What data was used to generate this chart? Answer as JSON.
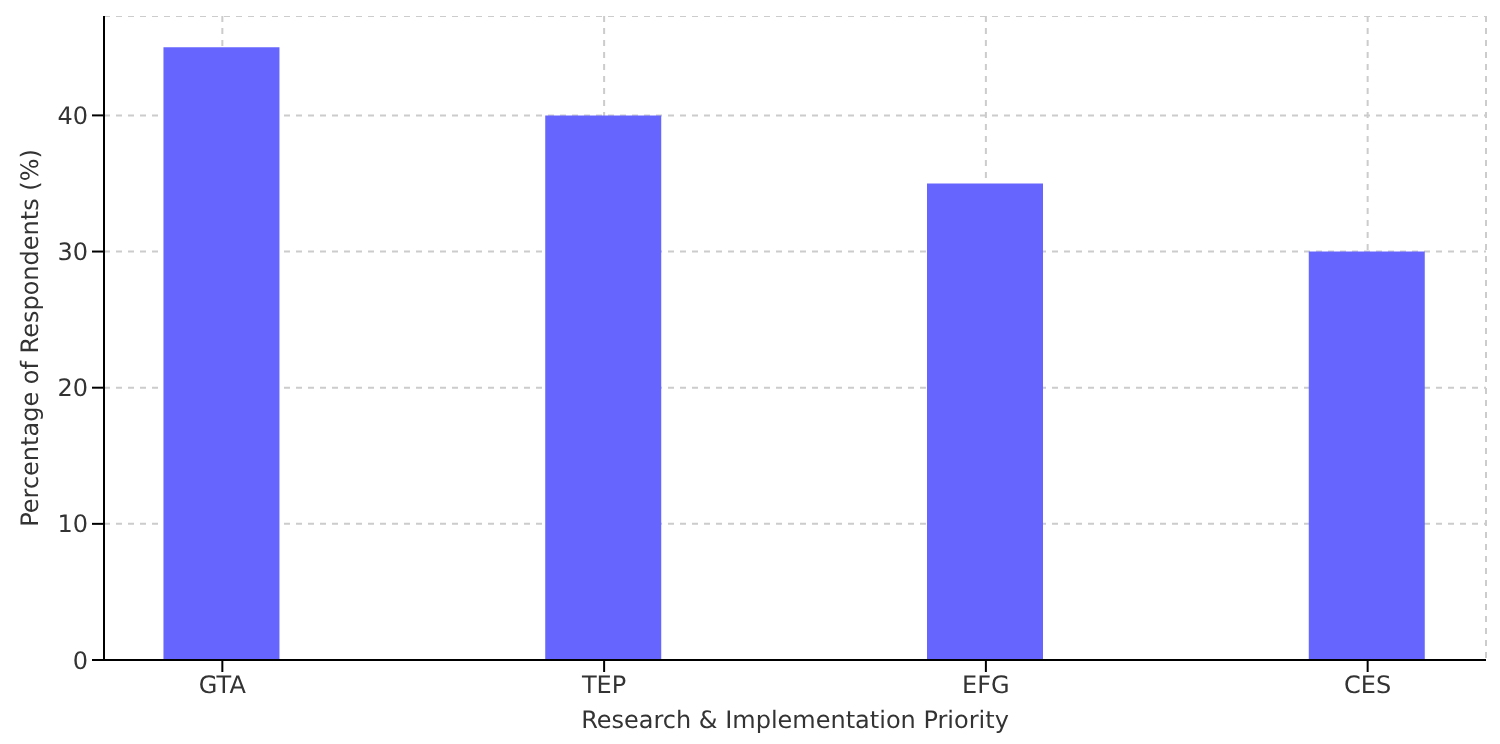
{
  "chart_data": {
    "type": "bar",
    "xlabel": "Research & Implementation Priority",
    "ylabel": "Percentage of Respondents (%)",
    "categories": [
      "GTA",
      "TEP",
      "EFG",
      "CES"
    ],
    "values": [
      45,
      40,
      35,
      30
    ],
    "color": "#6666ff",
    "ylim": [
      0,
      47.3
    ],
    "yticks": [
      0,
      10,
      20,
      30,
      40
    ],
    "grid": true,
    "legend": false
  }
}
